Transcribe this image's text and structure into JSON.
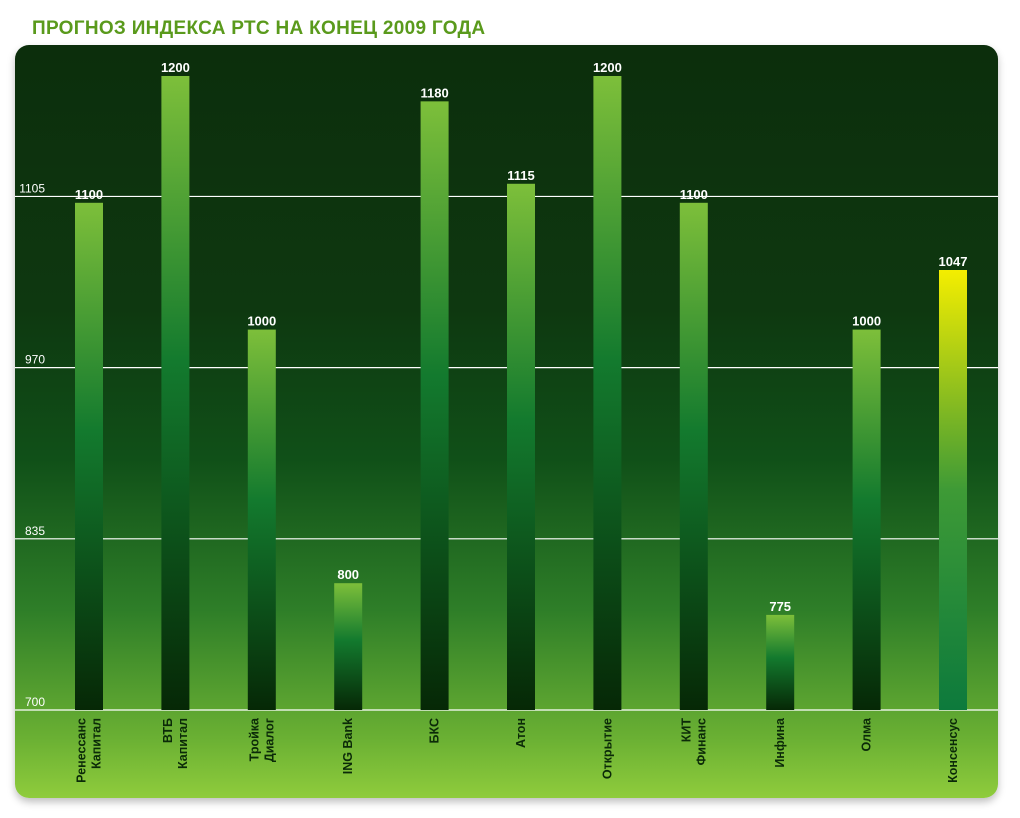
{
  "title": "ПРОГНОЗ ИНДЕКСА РТС НА КОНЕЦ 2009 ГОДА",
  "chart_data": {
    "type": "bar",
    "title": "ПРОГНОЗ ИНДЕКСА РТС НА КОНЕЦ 2009 ГОДА",
    "categories": [
      [
        "Ренессанс",
        "Капитал"
      ],
      [
        "ВТБ",
        "Капитал"
      ],
      [
        "Тройка",
        "Диалог"
      ],
      [
        "ING Bank"
      ],
      [
        "БКС"
      ],
      [
        "Атон"
      ],
      [
        "Открытие"
      ],
      [
        "КИТ",
        "Финанс"
      ],
      [
        "Инфина"
      ],
      [
        "Олма"
      ],
      [
        "Консенсус"
      ]
    ],
    "values": [
      1100,
      1200,
      1000,
      800,
      1180,
      1115,
      1200,
      1100,
      775,
      1000,
      1047
    ],
    "highlight_index": 10,
    "yticks": [
      700,
      835,
      970,
      1105
    ],
    "ylim": [
      700,
      1220
    ],
    "grid": true,
    "colors": {
      "bar_top": "#7dbf3a",
      "bar_mid": "#137a2e",
      "bar_bottom": "#062806",
      "highlight_top": "#f4ee00",
      "highlight_mid": "#3e9a36",
      "highlight_bottom": "#0d7a3c",
      "gridline": "#ffffff",
      "title": "#5a9a1c"
    }
  }
}
